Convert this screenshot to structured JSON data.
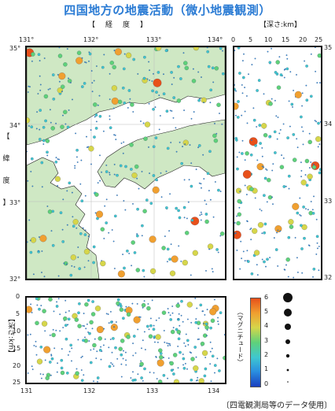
{
  "title": "四国地方の地震活動（微小地震観測）",
  "map": {
    "lon_label": "【　経　度　】",
    "lat_label": [
      "【",
      "緯",
      "度",
      "】"
    ],
    "lon_ticks": [
      "131°",
      "132°",
      "133°",
      "134°"
    ],
    "lat_ticks": [
      "35°",
      "34°",
      "33°",
      "32°"
    ],
    "land_color": "#cfe8c4",
    "sea_color": "#ffffff"
  },
  "depth_lat_panel": {
    "title": "【深さ:km】",
    "depth_ticks": [
      "0",
      "5",
      "10",
      "15",
      "20",
      "25"
    ],
    "lat_ticks": [
      "35",
      "34",
      "33",
      "32"
    ]
  },
  "depth_lon_panel": {
    "axis_label": "【深さ:km】",
    "depth_ticks": [
      "0",
      "5",
      "10",
      "15",
      "20",
      "25"
    ],
    "lon_ticks": [
      "131",
      "132",
      "133",
      "134"
    ]
  },
  "magnitude_legend": {
    "label": "（マグニチュード）",
    "ticks": [
      "6",
      "5",
      "4",
      "3",
      "2",
      "1",
      "0"
    ],
    "colors": [
      "#1a3fbf",
      "#2a8fe0",
      "#3fc7d0",
      "#5fd17a",
      "#d6d64a",
      "#f0a030",
      "#e8501a"
    ]
  },
  "credit": "〔四電観測局等のデータ使用〕"
}
